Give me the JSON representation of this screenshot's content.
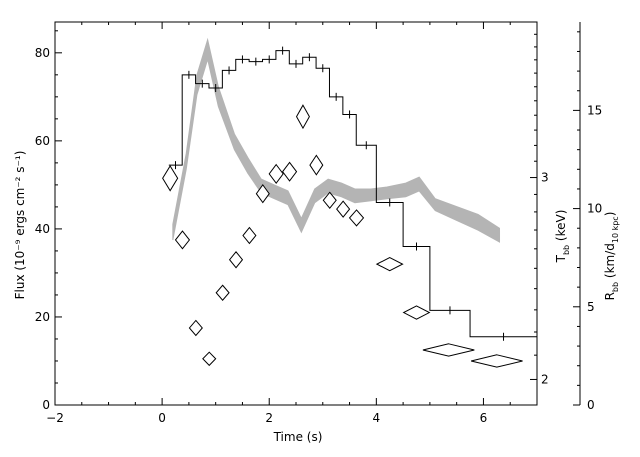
{
  "chart_data": {
    "type": "line",
    "title": "",
    "xlabel": "Time (s)",
    "xlim": [
      -2,
      7
    ],
    "x_ticks": [
      "−2",
      "0",
      "2",
      "4",
      "6"
    ],
    "x_tick_values": [
      -2,
      0,
      2,
      4,
      6
    ],
    "ylabel": "Flux (10⁻⁹ ergs cm⁻² s⁻¹)",
    "ylim": [
      0,
      87
    ],
    "y_ticks": [
      "0",
      "20",
      "40",
      "60",
      "80"
    ],
    "y_tick_values": [
      0,
      20,
      40,
      60,
      80
    ],
    "y2": {
      "label": "T_bb (keV)",
      "label_main": "T",
      "label_sub": "bb",
      "label_rest": " (keV)",
      "scale": "log",
      "ticks": [
        "2",
        "3"
      ],
      "tick_values": [
        2,
        3
      ],
      "range": [
        1.9,
        4.1
      ]
    },
    "y3": {
      "label": "R_bb (km/d_10 kpc)",
      "label_main": "R",
      "label_sub": "bb",
      "label_mid": " (km/d",
      "label_sub2": "10 kpc",
      "label_end": ")",
      "ticks": [
        "0",
        "5",
        "10",
        "15"
      ],
      "tick_values": [
        0,
        5,
        10,
        15
      ],
      "range": [
        0,
        19.5
      ]
    },
    "series": [
      {
        "kind": "histogram",
        "axis": "flux",
        "edges": [
          0.125,
          0.375,
          0.625,
          0.875,
          1.125,
          1.375,
          1.625,
          1.875,
          2.125,
          2.375,
          2.625,
          2.875,
          3.125,
          3.375,
          3.625,
          4.0,
          4.5,
          5.0,
          5.75,
          7.0
        ],
        "values": [
          54.5,
          75,
          73,
          72,
          76,
          78.5,
          78,
          78.5,
          80.5,
          77.5,
          79,
          76.5,
          70,
          66,
          59,
          46,
          36,
          21.5,
          15.5
        ]
      },
      {
        "kind": "band",
        "axis": "radius",
        "x": [
          0.2,
          0.45,
          0.65,
          0.85,
          1.05,
          1.35,
          1.6,
          1.85,
          2.1,
          2.35,
          2.6,
          2.85,
          3.1,
          3.35,
          3.6,
          3.9,
          4.2,
          4.55,
          4.8,
          5.1,
          5.5,
          5.9,
          6.3
        ],
        "lower": [
          8.4,
          12.0,
          15.8,
          17.6,
          15.2,
          13.0,
          11.8,
          10.8,
          10.5,
          10.2,
          8.8,
          10.3,
          10.8,
          10.6,
          10.3,
          10.4,
          10.5,
          10.6,
          10.9,
          9.9,
          9.4,
          8.9,
          8.3
        ],
        "upper": [
          9.2,
          12.8,
          16.8,
          18.6,
          16.2,
          13.8,
          12.6,
          11.5,
          11.2,
          10.9,
          9.5,
          11.0,
          11.5,
          11.3,
          11.0,
          11.0,
          11.1,
          11.3,
          11.6,
          10.5,
          10.1,
          9.7,
          9.0
        ]
      },
      {
        "kind": "diamonds",
        "axis": "flux",
        "points": [
          {
            "x": 0.15,
            "y": 51.5,
            "dx": 0.14,
            "dy": 2.8
          },
          {
            "x": 0.38,
            "y": 37.5,
            "dx": 0.13,
            "dy": 2.0
          },
          {
            "x": 0.63,
            "y": 17.5,
            "dx": 0.12,
            "dy": 1.7
          },
          {
            "x": 0.88,
            "y": 10.5,
            "dx": 0.12,
            "dy": 1.5
          },
          {
            "x": 1.13,
            "y": 25.5,
            "dx": 0.12,
            "dy": 1.7
          },
          {
            "x": 1.38,
            "y": 33.0,
            "dx": 0.12,
            "dy": 1.8
          },
          {
            "x": 1.63,
            "y": 38.5,
            "dx": 0.12,
            "dy": 1.8
          },
          {
            "x": 1.88,
            "y": 48.0,
            "dx": 0.12,
            "dy": 2.0
          },
          {
            "x": 2.13,
            "y": 52.5,
            "dx": 0.13,
            "dy": 2.1
          },
          {
            "x": 2.38,
            "y": 53.0,
            "dx": 0.13,
            "dy": 2.1
          },
          {
            "x": 2.63,
            "y": 65.5,
            "dx": 0.12,
            "dy": 2.6
          },
          {
            "x": 2.88,
            "y": 54.5,
            "dx": 0.12,
            "dy": 2.2
          },
          {
            "x": 3.13,
            "y": 46.5,
            "dx": 0.12,
            "dy": 1.8
          },
          {
            "x": 3.38,
            "y": 44.5,
            "dx": 0.12,
            "dy": 1.8
          },
          {
            "x": 3.63,
            "y": 42.5,
            "dx": 0.13,
            "dy": 1.8
          },
          {
            "x": 4.25,
            "y": 32.0,
            "dx": 0.24,
            "dy": 1.5
          },
          {
            "x": 4.75,
            "y": 21.0,
            "dx": 0.24,
            "dy": 1.5
          },
          {
            "x": 5.35,
            "y": 12.5,
            "dx": 0.48,
            "dy": 1.4
          },
          {
            "x": 6.25,
            "y": 10.0,
            "dx": 0.48,
            "dy": 1.4
          }
        ]
      }
    ]
  }
}
